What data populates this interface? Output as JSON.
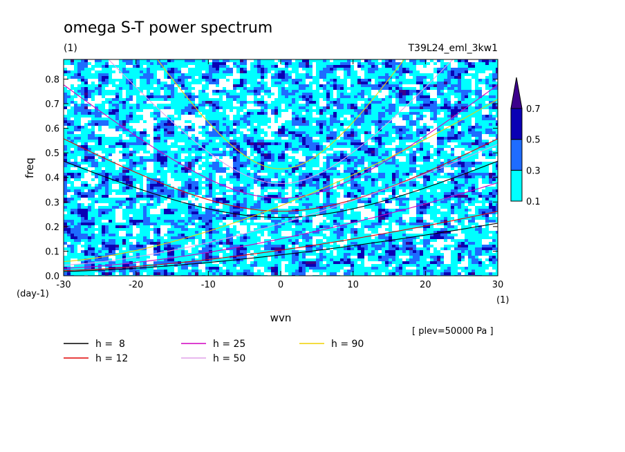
{
  "chart_data": {
    "type": "heatmap",
    "title": "omega S-T power spectrum",
    "subtitle_left": "(1)",
    "subtitle_right": "T39L24_eml_3kw1",
    "xlabel": "wvn",
    "ylabel": "freq",
    "x_unit": "(1)",
    "y_unit": "(day-1)",
    "note": "[ plev=50000 Pa ]",
    "xlim": [
      -30,
      30
    ],
    "ylim": [
      0.0,
      0.88
    ],
    "xticks": [
      -30,
      -20,
      -10,
      0,
      10,
      20,
      30
    ],
    "yticks": [
      0.0,
      0.1,
      0.2,
      0.3,
      0.4,
      0.5,
      0.6,
      0.7,
      0.8
    ],
    "xtick_labels": [
      "-30",
      "-20",
      "-10",
      "0",
      "10",
      "20",
      "30"
    ],
    "ytick_labels": [
      "0.0",
      "0.1",
      "0.2",
      "0.3",
      "0.4",
      "0.5",
      "0.6",
      "0.7",
      "0.8"
    ],
    "colorbar": {
      "levels": [
        0.1,
        0.3,
        0.5,
        0.7
      ],
      "labels": [
        "0.1",
        "0.3",
        "0.5",
        "0.7"
      ],
      "colors": [
        "#00ffff",
        "#1e6cff",
        "#0a00b4",
        "#3c008c"
      ]
    },
    "field_seed": 7,
    "dispersion_curves": [
      {
        "name": "h =  8",
        "h": 8,
        "color": "#000000"
      },
      {
        "name": "h = 12",
        "h": 12,
        "color": "#e00000"
      },
      {
        "name": "h = 25",
        "h": 25,
        "color": "#d000c0"
      },
      {
        "name": "h = 50",
        "h": 50,
        "color": "#e0a0e8"
      },
      {
        "name": "h = 90",
        "h": 90,
        "color": "#f0d000"
      }
    ],
    "legend_layout": "bottom-left, 3 columns"
  }
}
